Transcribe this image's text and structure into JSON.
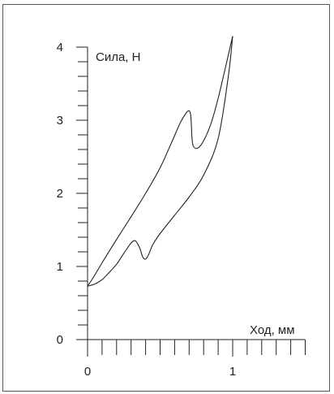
{
  "chart_data": {
    "type": "line",
    "title": "",
    "xlabel": "Ход, мм",
    "ylabel": "Сила, Н",
    "xlim": [
      0,
      1.5
    ],
    "ylim": [
      0,
      4
    ],
    "x_ticks": [
      "0",
      "1"
    ],
    "y_ticks": [
      "0",
      "1",
      "2",
      "3",
      "4"
    ],
    "x_minor_step": 0.1,
    "y_minor_step": 0.2,
    "grid": false,
    "legend": "none",
    "series": [
      {
        "segment": "press-upper",
        "x": [
          0.0,
          0.04,
          0.1,
          0.2,
          0.3,
          0.4,
          0.5,
          0.58,
          0.64,
          0.68,
          0.7,
          0.71,
          0.715,
          0.72,
          0.73,
          0.76,
          0.8,
          0.85,
          0.9,
          0.95,
          1.0
        ],
        "y": [
          0.73,
          0.85,
          1.05,
          1.37,
          1.68,
          2.0,
          2.35,
          2.7,
          2.97,
          3.1,
          3.13,
          3.08,
          2.95,
          2.75,
          2.64,
          2.62,
          2.72,
          2.95,
          3.3,
          3.72,
          4.15
        ]
      },
      {
        "segment": "return-lower",
        "x": [
          1.0,
          0.97,
          0.9,
          0.8,
          0.7,
          0.6,
          0.5,
          0.45,
          0.42,
          0.4,
          0.38,
          0.36,
          0.33,
          0.3,
          0.25,
          0.2,
          0.15,
          0.1,
          0.05,
          0.0
        ],
        "y": [
          4.15,
          3.6,
          2.75,
          2.25,
          1.95,
          1.7,
          1.45,
          1.3,
          1.16,
          1.1,
          1.13,
          1.25,
          1.35,
          1.32,
          1.18,
          1.03,
          0.92,
          0.82,
          0.76,
          0.73
        ]
      }
    ]
  }
}
